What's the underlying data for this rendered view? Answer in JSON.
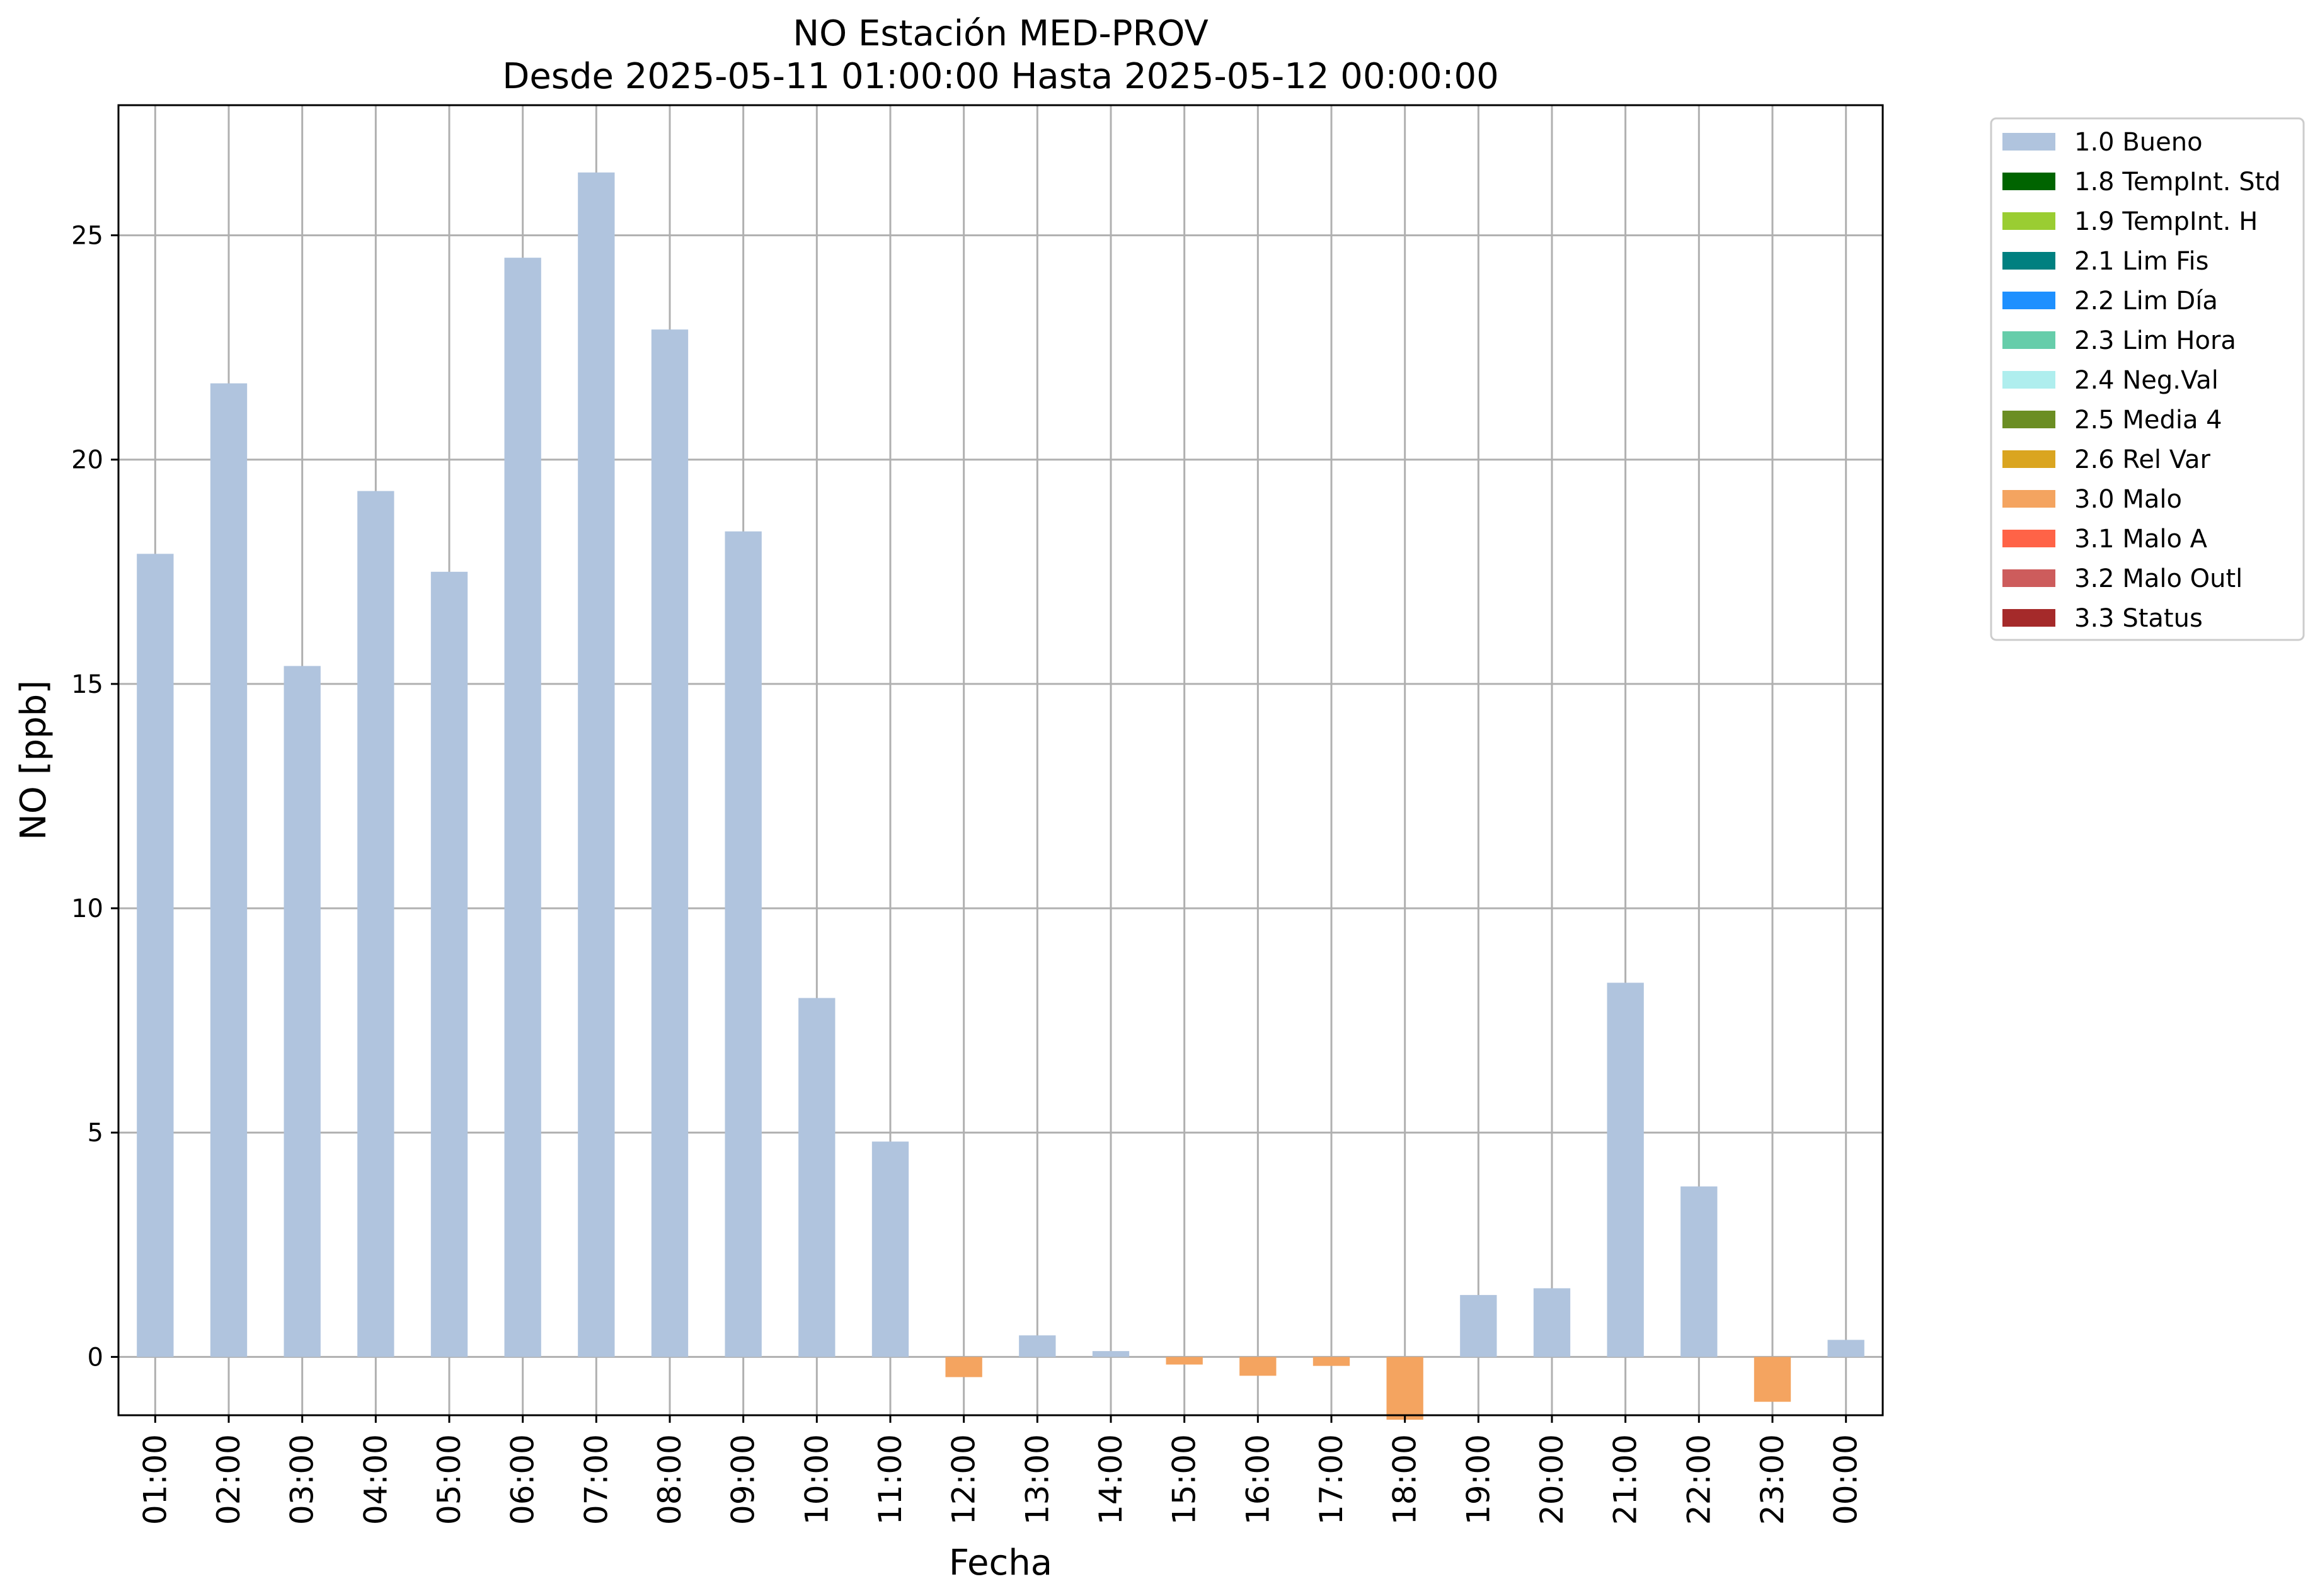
{
  "chart_data": {
    "type": "bar",
    "title": "NO Estación MED-PROV",
    "subtitle": "Desde 2025-05-11 01:00:00 Hasta 2025-05-12 00:00:00",
    "xlabel": "Fecha",
    "ylabel": "NO [ppb]",
    "ylim": [
      -1.3,
      27.9
    ],
    "yticks": [
      0,
      5,
      10,
      15,
      20,
      25
    ],
    "grid": true,
    "legend_position": "outside-top-right",
    "categories": [
      "01:00",
      "02:00",
      "03:00",
      "04:00",
      "05:00",
      "06:00",
      "07:00",
      "08:00",
      "09:00",
      "10:00",
      "11:00",
      "12:00",
      "13:00",
      "14:00",
      "15:00",
      "16:00",
      "17:00",
      "18:00",
      "19:00",
      "20:00",
      "21:00",
      "22:00",
      "23:00",
      "00:00"
    ],
    "values": [
      17.9,
      21.7,
      15.4,
      19.3,
      17.5,
      24.5,
      26.4,
      22.9,
      18.4,
      8.0,
      4.8,
      -0.45,
      0.48,
      0.13,
      -0.17,
      -0.42,
      -0.2,
      -1.4,
      1.38,
      1.53,
      8.34,
      3.8,
      -1.0,
      0.38
    ],
    "flags": [
      "1.0 Bueno",
      "1.0 Bueno",
      "1.0 Bueno",
      "1.0 Bueno",
      "1.0 Bueno",
      "1.0 Bueno",
      "1.0 Bueno",
      "1.0 Bueno",
      "1.0 Bueno",
      "1.0 Bueno",
      "1.0 Bueno",
      "3.0 Malo",
      "1.0 Bueno",
      "1.0 Bueno",
      "3.0 Malo",
      "3.0 Malo",
      "3.0 Malo",
      "3.0 Malo",
      "1.0 Bueno",
      "1.0 Bueno",
      "1.0 Bueno",
      "1.0 Bueno",
      "3.0 Malo",
      "1.0 Bueno"
    ],
    "legend": [
      {
        "label": "1.0 Bueno",
        "color": "#b0c4de"
      },
      {
        "label": "1.8 TempInt. Std",
        "color": "#006400"
      },
      {
        "label": "1.9 TempInt. H",
        "color": "#9acd32"
      },
      {
        "label": "2.1 Lim Fis",
        "color": "#008080"
      },
      {
        "label": "2.2 Lim Día",
        "color": "#1e90ff"
      },
      {
        "label": "2.3 Lim Hora",
        "color": "#66cdaa"
      },
      {
        "label": "2.4 Neg.Val",
        "color": "#afeeee"
      },
      {
        "label": "2.5 Media 4",
        "color": "#6b8e23"
      },
      {
        "label": "2.6 Rel Var",
        "color": "#daa520"
      },
      {
        "label": "3.0 Malo",
        "color": "#f4a460"
      },
      {
        "label": "3.1 Malo A",
        "color": "#ff6347"
      },
      {
        "label": "3.2 Malo Outl",
        "color": "#cd5c5c"
      },
      {
        "label": "3.3 Status",
        "color": "#a52a2a"
      }
    ]
  }
}
